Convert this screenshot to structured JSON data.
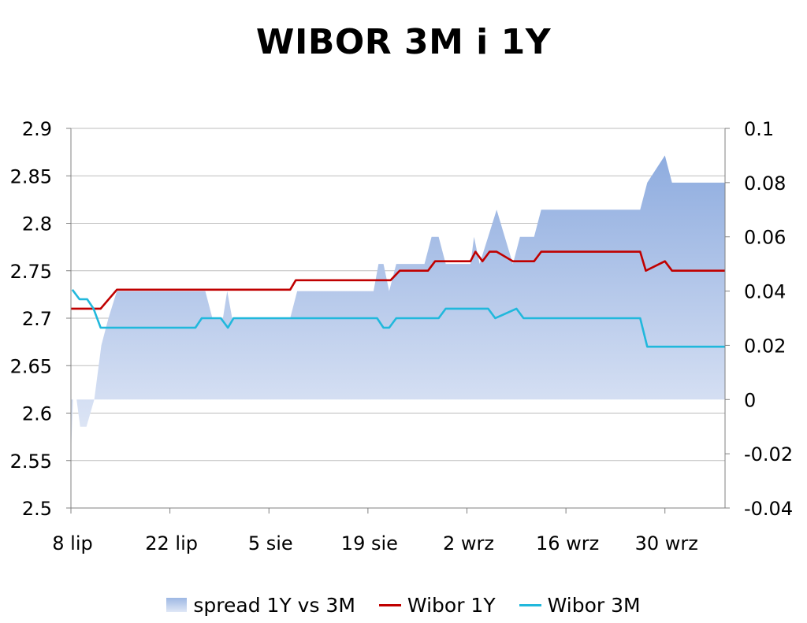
{
  "chart_data": {
    "type": "line",
    "title": "WIBOR 3M i 1Y",
    "x_tick_labels": [
      "8 lip",
      "22 lip",
      "5 sie",
      "19 sie",
      "2 wrz",
      "16 wrz",
      "30 wrz"
    ],
    "x_tick_days": [
      0,
      14,
      28,
      42,
      56,
      70,
      84
    ],
    "x_range_days": [
      0,
      92.5
    ],
    "y_left": {
      "ylim": [
        2.5,
        2.9
      ],
      "ticks": [
        "2.5",
        "2.55",
        "2.6",
        "2.65",
        "2.7",
        "2.75",
        "2.8",
        "2.85",
        "2.9"
      ]
    },
    "y_right": {
      "ylim": [
        -0.04,
        0.1
      ],
      "ticks": [
        "-0.04",
        "-0.02",
        "0",
        "0.02",
        "0.04",
        "0.06",
        "0.08",
        "0.1"
      ]
    },
    "grid": true,
    "legend_position": "bottom",
    "series": [
      {
        "name": "spread 1Y vs 3M",
        "kind": "area",
        "axis": "right",
        "color": "#9db8e3",
        "points": [
          [
            0,
            -0.02
          ],
          [
            0.3,
            0
          ],
          [
            0.8,
            0
          ],
          [
            1.3,
            -0.01
          ],
          [
            2.2,
            -0.01
          ],
          [
            3.3,
            0
          ],
          [
            4.3,
            0.02
          ],
          [
            5.3,
            0.03
          ],
          [
            6.5,
            0.04
          ],
          [
            19,
            0.04
          ],
          [
            20,
            0.03
          ],
          [
            21.5,
            0.03
          ],
          [
            22.1,
            0.04
          ],
          [
            22.8,
            0.03
          ],
          [
            31,
            0.03
          ],
          [
            32,
            0.04
          ],
          [
            42.8,
            0.04
          ],
          [
            43.5,
            0.05
          ],
          [
            44.2,
            0.05
          ],
          [
            45,
            0.04
          ],
          [
            46,
            0.05
          ],
          [
            50,
            0.05
          ],
          [
            51,
            0.06
          ],
          [
            52,
            0.06
          ],
          [
            53,
            0.05
          ],
          [
            56.5,
            0.05
          ],
          [
            57,
            0.06
          ],
          [
            57.8,
            0.05
          ],
          [
            59,
            0.06
          ],
          [
            60.2,
            0.07
          ],
          [
            62.5,
            0.05
          ],
          [
            63.5,
            0.06
          ],
          [
            65.5,
            0.06
          ],
          [
            66.5,
            0.07
          ],
          [
            80.5,
            0.07
          ],
          [
            81.5,
            0.08
          ],
          [
            84,
            0.09
          ],
          [
            85,
            0.08
          ],
          [
            92.5,
            0.08
          ]
        ]
      },
      {
        "name": "Wibor 1Y",
        "kind": "line",
        "axis": "left",
        "color": "#c00000",
        "points": [
          [
            0,
            2.71
          ],
          [
            4.2,
            2.71
          ],
          [
            6.5,
            2.73
          ],
          [
            31,
            2.73
          ],
          [
            31.8,
            2.74
          ],
          [
            45.2,
            2.74
          ],
          [
            46.5,
            2.75
          ],
          [
            50.5,
            2.75
          ],
          [
            51.5,
            2.76
          ],
          [
            56.5,
            2.76
          ],
          [
            57.2,
            2.77
          ],
          [
            58.2,
            2.76
          ],
          [
            59.2,
            2.77
          ],
          [
            60.2,
            2.77
          ],
          [
            62.5,
            2.76
          ],
          [
            65.5,
            2.76
          ],
          [
            66.5,
            2.77
          ],
          [
            80.5,
            2.77
          ],
          [
            81.3,
            2.75
          ],
          [
            84,
            2.76
          ],
          [
            85,
            2.75
          ],
          [
            92.5,
            2.75
          ]
        ]
      },
      {
        "name": "Wibor 3M",
        "kind": "line",
        "axis": "left",
        "color": "#21b8dc",
        "points": [
          [
            0.2,
            2.73
          ],
          [
            1.2,
            2.72
          ],
          [
            2.3,
            2.72
          ],
          [
            3.2,
            2.71
          ],
          [
            4.2,
            2.69
          ],
          [
            17.6,
            2.69
          ],
          [
            18.5,
            2.7
          ],
          [
            21.2,
            2.7
          ],
          [
            22.2,
            2.69
          ],
          [
            23,
            2.7
          ],
          [
            43.3,
            2.7
          ],
          [
            44.2,
            2.69
          ],
          [
            45,
            2.69
          ],
          [
            46,
            2.7
          ],
          [
            52,
            2.7
          ],
          [
            53,
            2.71
          ],
          [
            59,
            2.71
          ],
          [
            60,
            2.7
          ],
          [
            63,
            2.71
          ],
          [
            64,
            2.7
          ],
          [
            80.5,
            2.7
          ],
          [
            81.5,
            2.67
          ],
          [
            92.5,
            2.67
          ]
        ]
      }
    ]
  },
  "legend": {
    "spread_label": "spread 1Y vs 3M",
    "wibor1y_label": "Wibor 1Y",
    "wibor3m_label": "Wibor 3M"
  }
}
